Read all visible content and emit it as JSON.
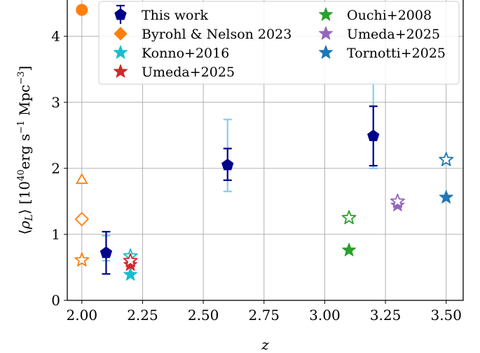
{
  "chart_data": {
    "type": "scatter",
    "title": "",
    "xlabel": "z",
    "ylabel": "⟨ρL⟩ [10^40 erg s^-1 Mpc^-3]",
    "ylabel_parts": {
      "open": "⟨",
      "rho": "ρ",
      "sub": "L",
      "close": "⟩ [10",
      "exp1": "40",
      "unit1": "erg s",
      "exp2": "−1",
      "unit2": " Mpc",
      "exp3": "−3",
      "end": "]"
    },
    "xlim": [
      1.94,
      3.57
    ],
    "ylim": [
      0,
      4.55
    ],
    "x_ticks": [
      2.0,
      2.25,
      2.5,
      2.75,
      3.0,
      3.25,
      3.5
    ],
    "x_tick_labels": [
      "2.00",
      "2.25",
      "2.50",
      "2.75",
      "3.00",
      "3.25",
      "3.50"
    ],
    "y_ticks": [
      0,
      1,
      2,
      3,
      4
    ],
    "y_tick_labels": [
      "0",
      "1",
      "2",
      "3",
      "4"
    ],
    "grid": true,
    "legend_position": "top",
    "colors": {
      "this_work": "#00008b",
      "this_work_light": "#87ceeb",
      "byrohl": "#ff7f0e",
      "konno": "#17becf",
      "umeda_red": "#d62728",
      "ouchi": "#2ca02c",
      "umeda_purple": "#9467bd",
      "tornotti": "#1f77b4"
    },
    "series": [
      {
        "name": "This work",
        "marker": "pentagon",
        "color": "#00008b",
        "filled": true,
        "points": [
          {
            "x": 2.1,
            "y": 0.72,
            "ylo": 0.4,
            "yhi": 1.04,
            "ylo2": 0.6,
            "yhi2": 0.98
          },
          {
            "x": 2.6,
            "y": 2.05,
            "ylo": 1.82,
            "yhi": 2.3,
            "ylo2": 1.65,
            "yhi2": 2.74
          },
          {
            "x": 3.2,
            "y": 2.49,
            "ylo": 2.04,
            "yhi": 2.94,
            "ylo2": 2.0,
            "yhi2": 3.3
          }
        ]
      },
      {
        "name": "Byrohl & Nelson 2023",
        "marker": "diamond",
        "color": "#ff7f0e",
        "filled": true,
        "points": [
          {
            "x": 2.0,
            "y": 4.4,
            "marker": "circle",
            "filled": true
          },
          {
            "x": 2.0,
            "y": 1.84,
            "marker": "triangle",
            "filled": false
          },
          {
            "x": 2.0,
            "y": 1.23,
            "marker": "diamond",
            "filled": false
          },
          {
            "x": 2.0,
            "y": 0.61,
            "marker": "star",
            "filled": false
          }
        ]
      },
      {
        "name": "Konno+2016",
        "marker": "star",
        "color": "#17becf",
        "filled": true,
        "points": [
          {
            "x": 2.2,
            "y": 0.39,
            "filled": true
          },
          {
            "x": 2.2,
            "y": 0.67,
            "filled": false
          }
        ]
      },
      {
        "name": "Umeda+2025",
        "marker": "star",
        "color": "#d62728",
        "filled": true,
        "points": [
          {
            "x": 2.2,
            "y": 0.54,
            "filled": true
          },
          {
            "x": 2.2,
            "y": 0.6,
            "filled": false
          }
        ]
      },
      {
        "name": "Ouchi+2008",
        "marker": "star",
        "color": "#2ca02c",
        "filled": true,
        "points": [
          {
            "x": 3.1,
            "y": 0.76,
            "filled": true
          },
          {
            "x": 3.1,
            "y": 1.25,
            "filled": false
          }
        ]
      },
      {
        "name": "Umeda+2025",
        "marker": "star",
        "color": "#9467bd",
        "filled": true,
        "points": [
          {
            "x": 3.3,
            "y": 1.44,
            "filled": true
          },
          {
            "x": 3.3,
            "y": 1.5,
            "filled": false
          }
        ]
      },
      {
        "name": "Tornotti+2025",
        "marker": "star",
        "color": "#1f77b4",
        "filled": true,
        "points": [
          {
            "x": 3.5,
            "y": 1.56,
            "filled": true
          },
          {
            "x": 3.5,
            "y": 2.13,
            "filled": false
          }
        ]
      }
    ]
  }
}
